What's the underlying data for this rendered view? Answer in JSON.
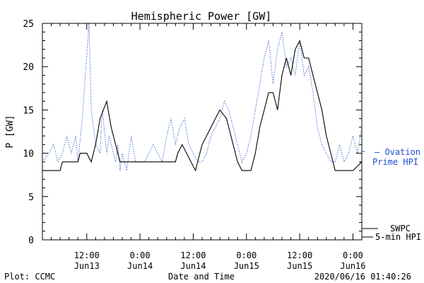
{
  "chart_data": {
    "type": "line",
    "title": "Hemispheric Power [GW]",
    "ylabel": "P [GW]",
    "xlabel": "Date and Time",
    "ylim": [
      0,
      25
    ],
    "xlim_hours": [
      0,
      72
    ],
    "yticks": [
      0,
      5,
      10,
      15,
      20,
      25
    ],
    "xticks": [
      {
        "hour": 10,
        "time": "12:00",
        "date": "Jun13"
      },
      {
        "hour": 22,
        "time": "0:00",
        "date": "Jun14"
      },
      {
        "hour": 34,
        "time": "12:00",
        "date": "Jun14"
      },
      {
        "hour": 46,
        "time": "0:00",
        "date": "Jun15"
      },
      {
        "hour": 58,
        "time": "12:00",
        "date": "Jun15"
      },
      {
        "hour": 70,
        "time": "0:00",
        "date": "Jun16"
      }
    ],
    "series": [
      {
        "name": "SWPC 5-min HPI",
        "color": "#000000",
        "style": "solid",
        "points": [
          [
            0,
            8
          ],
          [
            4,
            8
          ],
          [
            4.5,
            9
          ],
          [
            8,
            9
          ],
          [
            8.5,
            10
          ],
          [
            10,
            10
          ],
          [
            11,
            9
          ],
          [
            12,
            11
          ],
          [
            13,
            14
          ],
          [
            14.5,
            16
          ],
          [
            15.5,
            13
          ],
          [
            16.5,
            11
          ],
          [
            17.5,
            9
          ],
          [
            22,
            9
          ],
          [
            26,
            9
          ],
          [
            30,
            9
          ],
          [
            30.5,
            10
          ],
          [
            31.5,
            11
          ],
          [
            32.5,
            10
          ],
          [
            33.5,
            9
          ],
          [
            34.5,
            8
          ],
          [
            35,
            9
          ],
          [
            36,
            11
          ],
          [
            37,
            12
          ],
          [
            38,
            13
          ],
          [
            39,
            14
          ],
          [
            40,
            15
          ],
          [
            41.5,
            14
          ],
          [
            42,
            13
          ],
          [
            43,
            11
          ],
          [
            44,
            9
          ],
          [
            45,
            8
          ],
          [
            47,
            8
          ],
          [
            48,
            10
          ],
          [
            49,
            13
          ],
          [
            50,
            15
          ],
          [
            51,
            17
          ],
          [
            52,
            17
          ],
          [
            53,
            15
          ],
          [
            54,
            19
          ],
          [
            55,
            21
          ],
          [
            56,
            19
          ],
          [
            57,
            22
          ],
          [
            58,
            23
          ],
          [
            59,
            21
          ],
          [
            60,
            21
          ],
          [
            61,
            19
          ],
          [
            62,
            17
          ],
          [
            63,
            15
          ],
          [
            64,
            12
          ],
          [
            65,
            10
          ],
          [
            66,
            8
          ],
          [
            70,
            8
          ],
          [
            72,
            9
          ]
        ]
      },
      {
        "name": "Ovation Prime HPI",
        "color": "#1f4fd0",
        "style": "dotted",
        "points": [
          [
            0,
            9
          ],
          [
            1.5,
            10
          ],
          [
            2.5,
            11
          ],
          [
            3.5,
            9
          ],
          [
            4.5,
            10
          ],
          [
            5.5,
            12
          ],
          [
            6.5,
            10
          ],
          [
            7.5,
            12
          ],
          [
            8,
            9
          ],
          [
            9,
            14
          ],
          [
            10.5,
            25
          ],
          [
            11,
            15
          ],
          [
            12,
            11
          ],
          [
            13,
            10
          ],
          [
            13.5,
            15
          ],
          [
            14.5,
            10
          ],
          [
            15,
            12
          ],
          [
            16,
            10
          ],
          [
            16.5,
            9
          ],
          [
            17,
            11
          ],
          [
            17.5,
            8
          ],
          [
            18,
            10
          ],
          [
            19,
            8
          ],
          [
            20,
            12
          ],
          [
            21,
            9
          ],
          [
            22,
            9
          ],
          [
            23,
            9
          ],
          [
            25,
            11
          ],
          [
            26,
            10
          ],
          [
            27,
            9
          ],
          [
            28,
            12
          ],
          [
            29,
            14
          ],
          [
            30,
            11
          ],
          [
            31,
            13
          ],
          [
            32,
            14
          ],
          [
            33,
            11
          ],
          [
            34,
            10
          ],
          [
            35,
            9
          ],
          [
            36,
            9
          ],
          [
            37,
            10
          ],
          [
            38,
            12
          ],
          [
            39,
            13
          ],
          [
            40,
            14
          ],
          [
            41,
            16
          ],
          [
            42,
            15
          ],
          [
            43,
            13
          ],
          [
            44,
            11
          ],
          [
            45,
            9
          ],
          [
            46,
            10
          ],
          [
            47,
            12
          ],
          [
            48,
            15
          ],
          [
            49,
            18
          ],
          [
            50,
            21
          ],
          [
            51,
            23
          ],
          [
            52,
            18
          ],
          [
            53,
            22
          ],
          [
            54,
            24
          ],
          [
            55,
            20
          ],
          [
            56,
            21
          ],
          [
            57,
            19
          ],
          [
            58,
            23
          ],
          [
            59,
            19
          ],
          [
            60,
            20
          ],
          [
            61,
            17
          ],
          [
            62,
            13
          ],
          [
            63,
            11
          ],
          [
            64,
            10
          ],
          [
            65,
            9
          ],
          [
            66,
            9
          ],
          [
            67,
            11
          ],
          [
            68,
            9
          ],
          [
            69,
            10
          ],
          [
            70,
            12
          ],
          [
            71,
            10
          ],
          [
            72,
            13
          ]
        ]
      }
    ],
    "legend": [
      {
        "line1": "— Ovation",
        "line2": "Prime HPI",
        "color": "#1f4fd0",
        "position": "right-middle"
      },
      {
        "line1": "SWPC",
        "line2": "5-min HPI",
        "color": "#000000",
        "position": "right-bottom"
      }
    ]
  },
  "footer": {
    "left": "Plot: CCMC",
    "timestamp": "2020/06/16 01:40:26"
  }
}
